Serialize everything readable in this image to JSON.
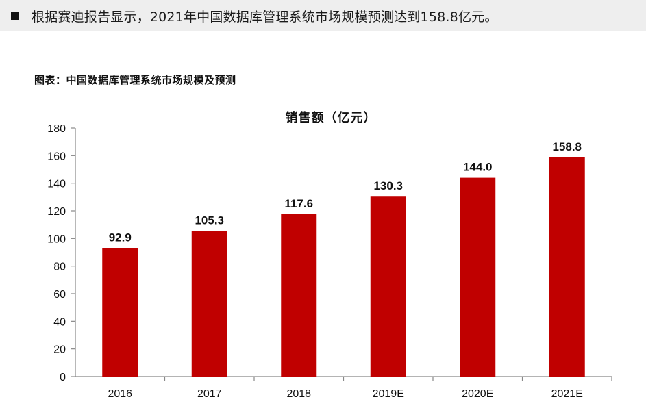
{
  "banner": {
    "text": "根据赛迪报告显示，2021年中国数据库管理系统市场规模预测达到158.8亿元。"
  },
  "figure": {
    "caption": "图表：中国数据库管理系统市场规模及预测"
  },
  "chart_data": {
    "type": "bar",
    "title": "销售额（亿元）",
    "categories": [
      "2016",
      "2017",
      "2018",
      "2019E",
      "2020E",
      "2021E"
    ],
    "values": [
      92.9,
      105.3,
      117.6,
      130.3,
      144.0,
      158.8
    ],
    "value_labels": [
      "92.9",
      "105.3",
      "117.6",
      "130.3",
      "144.0",
      "158.8"
    ],
    "ylim": [
      0,
      180
    ],
    "yticks": [
      0,
      20,
      40,
      60,
      80,
      100,
      120,
      140,
      160,
      180
    ],
    "xlabel": "",
    "ylabel": "",
    "grid": false,
    "legend": "none",
    "bar_color": "#c00000"
  }
}
